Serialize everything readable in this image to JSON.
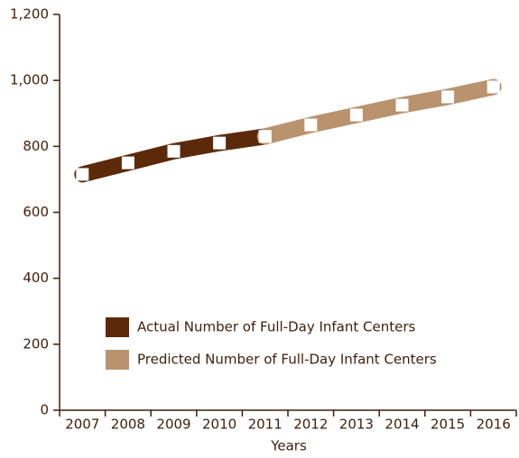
{
  "chart_data": {
    "type": "line",
    "x_label": "Years",
    "categories": [
      "2007",
      "2008",
      "2009",
      "2010",
      "2011",
      "2012",
      "2013",
      "2014",
      "2015",
      "2016"
    ],
    "series": [
      {
        "name": "Actual Number of Full-Day Infant Centers",
        "color": "#5c2a0a",
        "values": [
          715,
          750,
          785,
          810,
          830,
          null,
          null,
          null,
          null,
          null
        ]
      },
      {
        "name": "Predicted Number of Full-Day Infant Centers",
        "color": "#b8936e",
        "values": [
          null,
          null,
          null,
          null,
          830,
          865,
          895,
          925,
          950,
          980
        ]
      }
    ],
    "ylim": [
      0,
      1200
    ],
    "yticks": [
      0,
      200,
      400,
      600,
      800,
      {
        "value": 1000,
        "label": "1,000"
      },
      {
        "value": 1200,
        "label": "1,200"
      }
    ],
    "legend": "lower left"
  }
}
